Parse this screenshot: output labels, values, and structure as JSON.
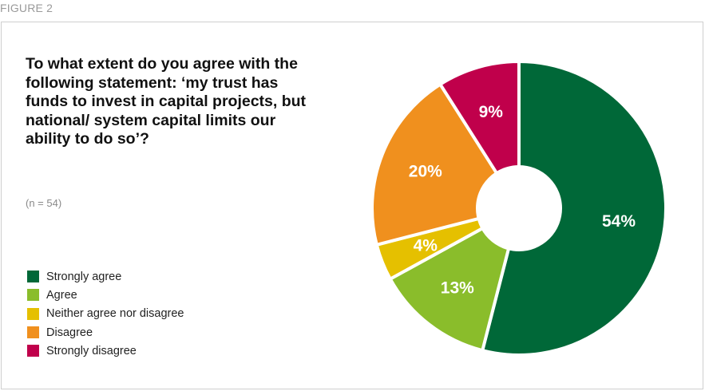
{
  "figure_label": "FIGURE 2",
  "question": "To what extent do you agree with the following statement: ‘my trust has funds to invest in capital projects, but national/ system capital limits our ability to do so’?",
  "sample_note": "(n = 54)",
  "chart_data": {
    "type": "pie",
    "style": "donut",
    "title": "To what extent do you agree with the following statement: ‘my trust has funds to invest in capital projects, but national/ system capital limits our ability to do so’?",
    "categories": [
      "Strongly agree",
      "Agree",
      "Neither agree nor disagree",
      "Disagree",
      "Strongly disagree"
    ],
    "values": [
      54,
      13,
      4,
      20,
      9
    ],
    "labels": [
      "54%",
      "13%",
      "4%",
      "20%",
      "9%"
    ],
    "colors": [
      "#006838",
      "#8ABD2B",
      "#E5C000",
      "#F0901E",
      "#C0004B"
    ],
    "legend_position": "bottom-left",
    "start_angle_deg": 0,
    "direction": "clockwise"
  }
}
